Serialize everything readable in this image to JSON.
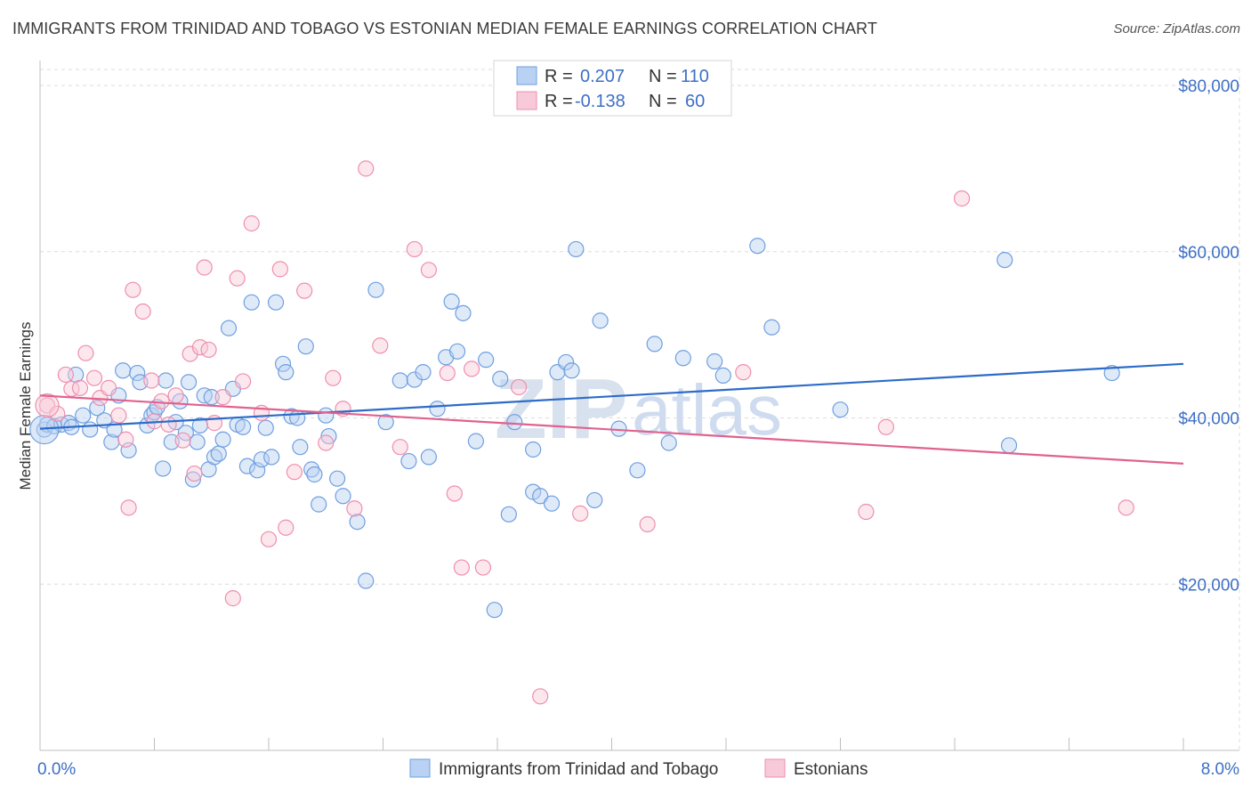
{
  "title": "IMMIGRANTS FROM TRINIDAD AND TOBAGO VS ESTONIAN MEDIAN FEMALE EARNINGS CORRELATION CHART",
  "source": "Source: ZipAtlas.com",
  "watermark": {
    "zip": "ZIP",
    "atlas": "atlas"
  },
  "legend": {
    "rows": [
      {
        "r_label": "R =",
        "r_value": "0.207",
        "n_label": "N =",
        "n_value": "110"
      },
      {
        "r_label": "R =",
        "r_value": "-0.138",
        "n_label": "N =",
        "n_value": "60"
      }
    ]
  },
  "chart_data": {
    "type": "scatter",
    "title": "IMMIGRANTS FROM TRINIDAD AND TOBAGO VS ESTONIAN MEDIAN FEMALE EARNINGS CORRELATION CHART",
    "xlabel": "",
    "ylabel": "Median Female Earnings",
    "xlim": [
      0,
      8
    ],
    "ylim": [
      0,
      80000
    ],
    "x_tick_labels": [
      "0.0%",
      "8.0%"
    ],
    "y_ticks": [
      20000,
      40000,
      60000,
      80000
    ],
    "y_tick_labels": [
      "$20,000",
      "$40,000",
      "$60,000",
      "$80,000"
    ],
    "grid": true,
    "colors": {
      "blue": "#6f9fe0",
      "blue_line": "#2d6cc8",
      "pink": "#ee8fb0",
      "pink_line": "#e0628f"
    },
    "series": [
      {
        "name": "Immigrants from Trinidad and Tobago",
        "color": "blue",
        "trend": {
          "x": [
            0,
            8
          ],
          "y": [
            38700,
            46500
          ]
        },
        "points": [
          [
            0.03,
            38600
          ],
          [
            0.05,
            39200
          ],
          [
            0.1,
            39000
          ],
          [
            0.15,
            39200
          ],
          [
            0.2,
            39400
          ],
          [
            0.22,
            38900
          ],
          [
            0.25,
            45200
          ],
          [
            0.3,
            40300
          ],
          [
            0.35,
            38600
          ],
          [
            0.4,
            41200
          ],
          [
            0.45,
            39700
          ],
          [
            0.5,
            37100
          ],
          [
            0.52,
            38600
          ],
          [
            0.55,
            42700
          ],
          [
            0.58,
            45700
          ],
          [
            0.62,
            36100
          ],
          [
            0.68,
            45400
          ],
          [
            0.7,
            44300
          ],
          [
            0.75,
            39100
          ],
          [
            0.78,
            40300
          ],
          [
            0.8,
            40700
          ],
          [
            0.82,
            41300
          ],
          [
            0.86,
            33900
          ],
          [
            0.88,
            44500
          ],
          [
            0.92,
            37100
          ],
          [
            0.95,
            39500
          ],
          [
            0.98,
            42000
          ],
          [
            1.02,
            38200
          ],
          [
            1.04,
            44300
          ],
          [
            1.07,
            32600
          ],
          [
            1.1,
            37100
          ],
          [
            1.12,
            39100
          ],
          [
            1.15,
            42700
          ],
          [
            1.18,
            33800
          ],
          [
            1.2,
            42500
          ],
          [
            1.22,
            35300
          ],
          [
            1.25,
            35700
          ],
          [
            1.28,
            37400
          ],
          [
            1.32,
            50800
          ],
          [
            1.35,
            43500
          ],
          [
            1.38,
            39200
          ],
          [
            1.42,
            38900
          ],
          [
            1.45,
            34200
          ],
          [
            1.48,
            53900
          ],
          [
            1.52,
            33700
          ],
          [
            1.55,
            35000
          ],
          [
            1.58,
            38800
          ],
          [
            1.62,
            35300
          ],
          [
            1.65,
            53900
          ],
          [
            1.7,
            46500
          ],
          [
            1.72,
            45500
          ],
          [
            1.76,
            40200
          ],
          [
            1.8,
            40000
          ],
          [
            1.82,
            36500
          ],
          [
            1.86,
            48600
          ],
          [
            1.9,
            33800
          ],
          [
            1.92,
            33200
          ],
          [
            1.95,
            29600
          ],
          [
            2.0,
            40300
          ],
          [
            2.02,
            37800
          ],
          [
            2.08,
            32700
          ],
          [
            2.12,
            30600
          ],
          [
            2.22,
            27500
          ],
          [
            2.28,
            20400
          ],
          [
            2.35,
            55400
          ],
          [
            2.42,
            39500
          ],
          [
            2.52,
            44500
          ],
          [
            2.58,
            34800
          ],
          [
            2.62,
            44600
          ],
          [
            2.68,
            45500
          ],
          [
            2.72,
            35300
          ],
          [
            2.78,
            41100
          ],
          [
            2.84,
            47300
          ],
          [
            2.88,
            54000
          ],
          [
            2.92,
            48000
          ],
          [
            2.96,
            52600
          ],
          [
            3.05,
            37200
          ],
          [
            3.12,
            47000
          ],
          [
            3.18,
            16900
          ],
          [
            3.22,
            44700
          ],
          [
            3.28,
            28400
          ],
          [
            3.32,
            39500
          ],
          [
            3.45,
            36200
          ],
          [
            3.45,
            31100
          ],
          [
            3.5,
            30600
          ],
          [
            3.58,
            29700
          ],
          [
            3.62,
            45500
          ],
          [
            3.68,
            46700
          ],
          [
            3.72,
            45700
          ],
          [
            3.75,
            60300
          ],
          [
            3.88,
            30100
          ],
          [
            3.92,
            51700
          ],
          [
            4.05,
            38700
          ],
          [
            4.18,
            33700
          ],
          [
            4.3,
            48900
          ],
          [
            4.4,
            37000
          ],
          [
            4.5,
            47200
          ],
          [
            4.72,
            46800
          ],
          [
            4.78,
            45100
          ],
          [
            5.02,
            60700
          ],
          [
            5.12,
            50900
          ],
          [
            5.6,
            41000
          ],
          [
            6.75,
            59000
          ],
          [
            6.78,
            36700
          ],
          [
            7.5,
            45400
          ]
        ]
      },
      {
        "name": "Estonians",
        "color": "pink",
        "trend": {
          "x": [
            0,
            8
          ],
          "y": [
            42700,
            34500
          ]
        },
        "points": [
          [
            0.05,
            41500
          ],
          [
            0.12,
            40500
          ],
          [
            0.18,
            45200
          ],
          [
            0.22,
            43500
          ],
          [
            0.28,
            43600
          ],
          [
            0.32,
            47800
          ],
          [
            0.38,
            44800
          ],
          [
            0.42,
            42400
          ],
          [
            0.48,
            43600
          ],
          [
            0.55,
            40300
          ],
          [
            0.6,
            37400
          ],
          [
            0.62,
            29200
          ],
          [
            0.65,
            55400
          ],
          [
            0.72,
            52800
          ],
          [
            0.78,
            44500
          ],
          [
            0.8,
            39600
          ],
          [
            0.85,
            42000
          ],
          [
            0.9,
            39200
          ],
          [
            0.95,
            42700
          ],
          [
            1.0,
            37300
          ],
          [
            1.05,
            47700
          ],
          [
            1.08,
            33300
          ],
          [
            1.12,
            48500
          ],
          [
            1.15,
            58100
          ],
          [
            1.18,
            48200
          ],
          [
            1.22,
            39400
          ],
          [
            1.28,
            42500
          ],
          [
            1.35,
            18300
          ],
          [
            1.38,
            56800
          ],
          [
            1.42,
            44400
          ],
          [
            1.48,
            63400
          ],
          [
            1.55,
            40600
          ],
          [
            1.6,
            25400
          ],
          [
            1.68,
            57900
          ],
          [
            1.72,
            26800
          ],
          [
            1.78,
            33500
          ],
          [
            1.85,
            55300
          ],
          [
            2.0,
            37000
          ],
          [
            2.05,
            44800
          ],
          [
            2.12,
            41100
          ],
          [
            2.2,
            29100
          ],
          [
            2.28,
            70000
          ],
          [
            2.38,
            48700
          ],
          [
            2.52,
            36500
          ],
          [
            2.62,
            60300
          ],
          [
            2.72,
            57800
          ],
          [
            2.85,
            45400
          ],
          [
            2.9,
            30900
          ],
          [
            2.95,
            22000
          ],
          [
            3.02,
            45900
          ],
          [
            3.1,
            22000
          ],
          [
            3.35,
            43700
          ],
          [
            3.5,
            6500
          ],
          [
            3.78,
            28500
          ],
          [
            4.25,
            27200
          ],
          [
            4.92,
            45500
          ],
          [
            5.78,
            28700
          ],
          [
            5.92,
            38900
          ],
          [
            6.45,
            66400
          ],
          [
            7.6,
            29200
          ]
        ]
      }
    ]
  },
  "bottom_legend": {
    "items": [
      {
        "label": "Immigrants from Trinidad and Tobago"
      },
      {
        "label": "Estonians"
      }
    ]
  }
}
